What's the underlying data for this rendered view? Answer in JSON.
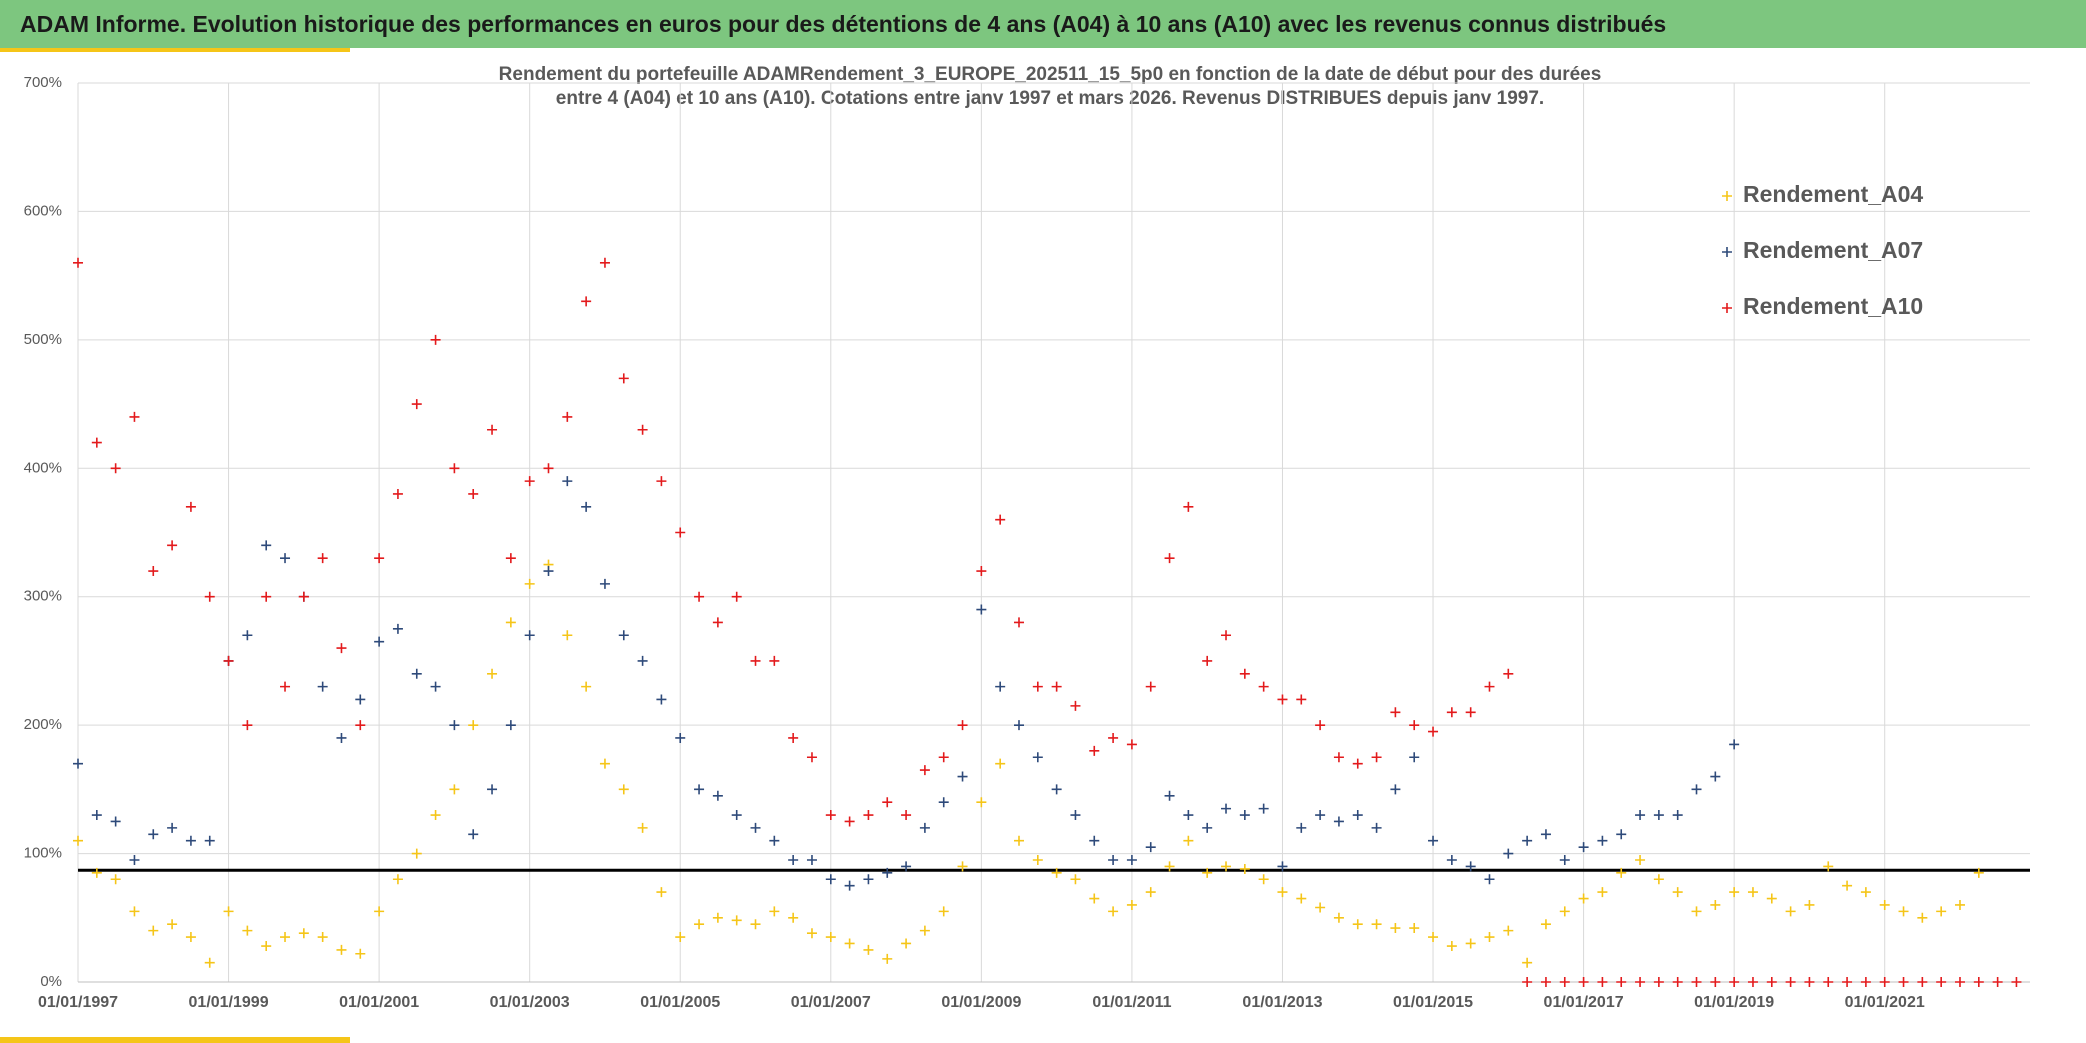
{
  "header": {
    "title": "ADAM Informe. Evolution historique des performances en euros pour des détentions de 4 ans (A04) à 10 ans (A10) avec les revenus connus distribués"
  },
  "chart_data": {
    "type": "scatter",
    "title": "Rendement du portefeuille ADAMRendement_3_EUROPE_202511_15_5p0  en fonction de la date de début pour des durées",
    "subtitle": "entre 4 (A04) et 10 ans (A10). Cotations entre janv 1997 et mars 2026. Revenus DISTRIBUES depuis janv 1997.",
    "x": [
      1997,
      1997.25,
      1997.5,
      1997.75,
      1998,
      1998.25,
      1998.5,
      1998.75,
      1999,
      1999.25,
      1999.5,
      1999.75,
      2000,
      2000.25,
      2000.5,
      2000.75,
      2001,
      2001.25,
      2001.5,
      2001.75,
      2002,
      2002.25,
      2002.5,
      2002.75,
      2003,
      2003.25,
      2003.5,
      2003.75,
      2004,
      2004.25,
      2004.5,
      2004.75,
      2005,
      2005.25,
      2005.5,
      2005.75,
      2006,
      2006.25,
      2006.5,
      2006.75,
      2007,
      2007.25,
      2007.5,
      2007.75,
      2008,
      2008.25,
      2008.5,
      2008.75,
      2009,
      2009.25,
      2009.5,
      2009.75,
      2010,
      2010.25,
      2010.5,
      2010.75,
      2011,
      2011.25,
      2011.5,
      2011.75,
      2012,
      2012.25,
      2012.5,
      2012.75,
      2013,
      2013.25,
      2013.5,
      2013.75,
      2014,
      2014.25,
      2014.5,
      2014.75,
      2015,
      2015.25,
      2015.5,
      2015.75,
      2016,
      2016.25,
      2016.5,
      2016.75,
      2017,
      2017.25,
      2017.5,
      2017.75,
      2018,
      2018.25,
      2018.5,
      2018.75,
      2019,
      2019.25,
      2019.5,
      2019.75,
      2020,
      2020.25,
      2020.5,
      2020.75,
      2021,
      2021.25,
      2021.5,
      2021.75,
      2022,
      2022.25,
      2022.5,
      2022.75
    ],
    "series": [
      {
        "name": "Rendement_A04",
        "color": "#f5c518",
        "values": [
          110,
          85,
          80,
          55,
          40,
          45,
          35,
          15,
          55,
          40,
          28,
          35,
          38,
          35,
          25,
          22,
          55,
          80,
          100,
          130,
          150,
          200,
          240,
          280,
          310,
          325,
          270,
          230,
          170,
          150,
          120,
          70,
          35,
          45,
          50,
          48,
          45,
          55,
          50,
          38,
          35,
          30,
          25,
          18,
          30,
          40,
          55,
          90,
          140,
          170,
          110,
          95,
          85,
          80,
          65,
          55,
          60,
          70,
          90,
          110,
          85,
          90,
          88,
          80,
          70,
          65,
          58,
          50,
          45,
          45,
          42,
          42,
          35,
          28,
          30,
          35,
          40,
          15,
          45,
          55,
          65,
          70,
          85,
          95,
          80,
          70,
          55,
          60,
          70,
          70,
          65,
          55,
          60,
          90,
          75,
          70,
          60,
          55,
          50,
          55,
          60,
          85,
          null,
          null
        ]
      },
      {
        "name": "Rendement_A07",
        "color": "#2e4a7a",
        "values": [
          170,
          130,
          125,
          95,
          115,
          120,
          110,
          110,
          250,
          270,
          340,
          330,
          300,
          230,
          190,
          220,
          265,
          275,
          240,
          230,
          200,
          115,
          150,
          200,
          270,
          320,
          390,
          370,
          310,
          270,
          250,
          220,
          190,
          150,
          145,
          130,
          120,
          110,
          95,
          95,
          80,
          75,
          80,
          85,
          90,
          120,
          140,
          160,
          290,
          230,
          200,
          175,
          150,
          130,
          110,
          95,
          95,
          105,
          145,
          130,
          120,
          135,
          130,
          135,
          90,
          120,
          130,
          125,
          130,
          120,
          150,
          175,
          110,
          95,
          90,
          80,
          100,
          110,
          115,
          95,
          105,
          110,
          115,
          130,
          130,
          130,
          150,
          160,
          185,
          null,
          null,
          null,
          null,
          null,
          null,
          null,
          null,
          null,
          null,
          null,
          null,
          null,
          null,
          null
        ]
      },
      {
        "name": "Rendement_A10",
        "color": "#e31a1c",
        "values": [
          560,
          420,
          400,
          440,
          320,
          340,
          370,
          300,
          250,
          200,
          300,
          230,
          300,
          330,
          260,
          200,
          330,
          380,
          450,
          500,
          400,
          380,
          430,
          330,
          390,
          400,
          440,
          530,
          560,
          470,
          430,
          390,
          350,
          300,
          280,
          300,
          250,
          250,
          190,
          175,
          130,
          125,
          130,
          140,
          130,
          165,
          175,
          200,
          320,
          360,
          280,
          230,
          230,
          215,
          180,
          190,
          185,
          230,
          330,
          370,
          250,
          270,
          240,
          230,
          220,
          220,
          200,
          175,
          170,
          175,
          210,
          200,
          195,
          210,
          210,
          230,
          240,
          0,
          0,
          0,
          0,
          0,
          0,
          0,
          0,
          0,
          0,
          0,
          0,
          0,
          0,
          0,
          0,
          0,
          0,
          0,
          0,
          0,
          0,
          0,
          0,
          0,
          0,
          0
        ]
      }
    ],
    "reference_line": 87,
    "xlim": [
      1997,
      2022.93
    ],
    "xticks": [
      {
        "value": 1997,
        "label": "01/01/1997"
      },
      {
        "value": 1999,
        "label": "01/01/1999"
      },
      {
        "value": 2001,
        "label": "01/01/2001"
      },
      {
        "value": 2003,
        "label": "01/01/2003"
      },
      {
        "value": 2005,
        "label": "01/01/2005"
      },
      {
        "value": 2007,
        "label": "01/01/2007"
      },
      {
        "value": 2009,
        "label": "01/01/2009"
      },
      {
        "value": 2011,
        "label": "01/01/2011"
      },
      {
        "value": 2013,
        "label": "01/01/2013"
      },
      {
        "value": 2015,
        "label": "01/01/2015"
      },
      {
        "value": 2017,
        "label": "01/01/2017"
      },
      {
        "value": 2019,
        "label": "01/01/2019"
      },
      {
        "value": 2021,
        "label": "01/01/2021"
      }
    ],
    "ylim": [
      0,
      700
    ],
    "yticks": [
      {
        "value": 0,
        "label": "0%"
      },
      {
        "value": 100,
        "label": "100%"
      },
      {
        "value": 200,
        "label": "200%"
      },
      {
        "value": 300,
        "label": "300%"
      },
      {
        "value": 400,
        "label": "400%"
      },
      {
        "value": 500,
        "label": "500%"
      },
      {
        "value": 600,
        "label": "600%"
      },
      {
        "value": 700,
        "label": "700%"
      }
    ],
    "grid": true,
    "legend": "upper right"
  }
}
